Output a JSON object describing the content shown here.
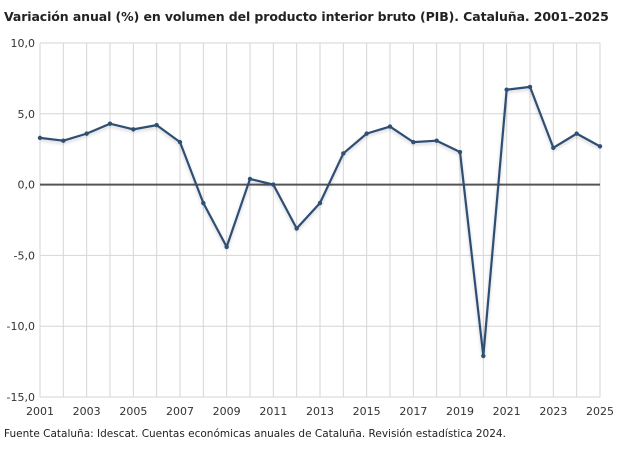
{
  "chart_data": {
    "type": "line",
    "title": "Variación anual (%) en volumen del producto interior bruto (PIB). Cataluña. 2001–2025",
    "xlabel": "",
    "ylabel": "",
    "x": [
      2001,
      2002,
      2003,
      2004,
      2005,
      2006,
      2007,
      2008,
      2009,
      2010,
      2011,
      2012,
      2013,
      2014,
      2015,
      2016,
      2017,
      2018,
      2019,
      2020,
      2021,
      2022,
      2023,
      2024,
      2025
    ],
    "x_tick_labels": [
      "2001",
      "2003",
      "2005",
      "2007",
      "2009",
      "2011",
      "2013",
      "2015",
      "2017",
      "2019",
      "2021",
      "2023",
      "2025"
    ],
    "y_tick_labels": [
      "10,0",
      "5,0",
      "0,0",
      "-5,0",
      "-10,0",
      "-15,0"
    ],
    "ylim": [
      -15,
      10
    ],
    "y_ticks": [
      10,
      5,
      0,
      -5,
      -10,
      -15
    ],
    "grid": true,
    "series": [
      {
        "values": [
          3.3,
          3.1,
          3.6,
          4.3,
          3.9,
          4.2,
          3.0,
          -1.3,
          -4.4,
          0.4,
          0.0,
          -3.1,
          -1.3,
          2.2,
          3.6,
          4.1,
          3.0,
          3.1,
          2.3,
          -12.1,
          6.7,
          6.9,
          2.6,
          3.6,
          2.7
        ],
        "color": "#2f4f73"
      }
    ],
    "zero_line_color": "#555555",
    "grid_color": "#d6d6d6"
  },
  "source": "Fuente Cataluña: Idescat. Cuentas económicas anuales de Cataluña. Revisión estadística 2024."
}
